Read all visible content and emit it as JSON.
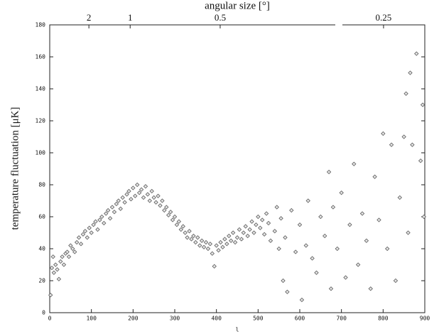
{
  "chart_data": {
    "type": "scatter",
    "xlabel": "l",
    "ylabel": "temperature fluctuation [μK]",
    "x2label": "angular size [°]",
    "xlim": [
      0,
      900
    ],
    "ylim": [
      0,
      180
    ],
    "xticks": [
      0,
      100,
      200,
      300,
      400,
      500,
      600,
      700,
      800,
      900
    ],
    "yticks": [
      0,
      20,
      40,
      60,
      80,
      100,
      120,
      140,
      160,
      180
    ],
    "x2ticks": [
      {
        "value": 94,
        "label": "2"
      },
      {
        "value": 193,
        "label": "1"
      },
      {
        "value": 409,
        "label": "0.5"
      },
      {
        "value": 801,
        "label": "0.25"
      }
    ],
    "series": [
      {
        "color": "#555555",
        "x": [
          2,
          5,
          8,
          10,
          14,
          18,
          22,
          26,
          30,
          34,
          38,
          42,
          46,
          50,
          55,
          60,
          65,
          70,
          75,
          80,
          85,
          90,
          95,
          100,
          105,
          110,
          115,
          120,
          125,
          130,
          135,
          140,
          145,
          150,
          155,
          160,
          165,
          170,
          175,
          180,
          185,
          190,
          195,
          200,
          205,
          210,
          215,
          220,
          225,
          230,
          235,
          240,
          245,
          250,
          255,
          260,
          265,
          270,
          275,
          280,
          285,
          290,
          295,
          300,
          305,
          310,
          315,
          320,
          325,
          330,
          335,
          340,
          345,
          350,
          355,
          360,
          365,
          370,
          375,
          380,
          385,
          390,
          395,
          400,
          405,
          410,
          415,
          420,
          425,
          430,
          435,
          440,
          445,
          450,
          455,
          460,
          465,
          470,
          475,
          480,
          485,
          490,
          495,
          500,
          505,
          510,
          515,
          520,
          525,
          530,
          540,
          545,
          550,
          555,
          560,
          565,
          570,
          580,
          590,
          600,
          605,
          615,
          620,
          630,
          640,
          650,
          660,
          670,
          675,
          680,
          690,
          700,
          710,
          720,
          730,
          740,
          750,
          760,
          770,
          780,
          790,
          800,
          810,
          820,
          830,
          840,
          850,
          855,
          860,
          865,
          870,
          880,
          890,
          895,
          898
        ],
        "values": [
          11,
          28,
          35,
          25,
          30,
          27,
          21,
          32,
          35,
          30,
          37,
          38,
          35,
          42,
          40,
          38,
          44,
          47,
          43,
          49,
          51,
          47,
          53,
          50,
          55,
          57,
          52,
          58,
          60,
          56,
          62,
          64,
          59,
          66,
          63,
          68,
          70,
          65,
          72,
          69,
          74,
          76,
          71,
          78,
          73,
          80,
          75,
          77,
          72,
          79,
          74,
          70,
          76,
          72,
          69,
          73,
          67,
          70,
          64,
          66,
          61,
          63,
          58,
          60,
          55,
          57,
          52,
          54,
          50,
          47,
          51,
          46,
          48,
          44,
          47,
          42,
          45,
          41,
          44,
          40,
          43,
          37,
          29,
          42,
          39,
          44,
          41,
          46,
          43,
          48,
          45,
          50,
          44,
          47,
          52,
          46,
          50,
          54,
          48,
          52,
          57,
          50,
          55,
          60,
          53,
          58,
          49,
          62,
          56,
          45,
          51,
          66,
          40,
          59,
          20,
          47,
          13,
          64,
          38,
          55,
          8,
          42,
          70,
          34,
          25,
          60,
          48,
          88,
          15,
          66,
          40,
          75,
          22,
          55,
          93,
          30,
          62,
          45,
          15,
          85,
          58,
          112,
          40,
          105,
          20,
          72,
          110,
          137,
          50,
          150,
          105,
          162,
          95,
          130,
          60
        ]
      }
    ]
  }
}
